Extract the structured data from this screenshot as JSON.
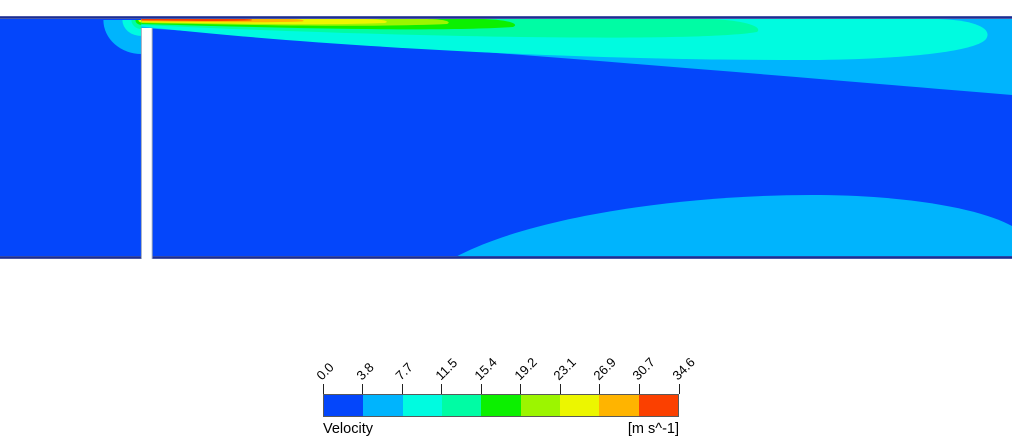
{
  "palette": {
    "blue": "#0446fb",
    "azure": "#00b4fd",
    "cyan": "#00fbe0",
    "spring_green": "#00fca4",
    "green": "#0cf000",
    "lime": "#9cf500",
    "yellow": "#ecf600",
    "orange": "#ffb400",
    "red_orange": "#fb4000",
    "wall_line": "#1c2d92",
    "baffle_fill": "#ffffff",
    "baffle_edge": "#97a1b4"
  },
  "legend": {
    "title": "Velocity",
    "units": "[m s^-1]",
    "tick_labels": [
      "0.0",
      "3.8",
      "7.7",
      "11.5",
      "15.4",
      "19.2",
      "23.1",
      "26.9",
      "30.7",
      "34.6"
    ],
    "colors": [
      "#0446fb",
      "#00b4fd",
      "#00fbe0",
      "#00fca4",
      "#0cf000",
      "#9cf500",
      "#ecf600",
      "#ffb400",
      "#fb4000"
    ]
  },
  "chart_data": {
    "type": "contour",
    "title": "Velocity",
    "units": "m s^-1",
    "levels": [
      0.0,
      3.8,
      7.7,
      11.5,
      15.4,
      19.2,
      23.1,
      26.9,
      30.7,
      34.6
    ],
    "band_ranges": [
      "0.0-3.8",
      "3.8-7.7",
      "7.7-11.5",
      "11.5-15.4",
      "15.4-19.2",
      "19.2-23.1",
      "23.1-26.9",
      "26.9-30.7",
      "30.7-34.6"
    ],
    "band_colors": [
      "#0446fb",
      "#00b4fd",
      "#00fbe0",
      "#00fca4",
      "#0cf000",
      "#9cf500",
      "#ecf600",
      "#ffb400",
      "#fb4000"
    ],
    "legend_position": "bottom-center",
    "scene": {
      "description": "2D CFD velocity-magnitude contour: flow accelerates through a narrow gap above a thin vertical baffle and forms a high-speed wall jet (up to ~34.6 m/s, red core) along the top wall; the jet spreads and decelerates downstream through orange/yellow/green/cyan bands. Background fluid in both chambers is in the lowest band (0.0-3.8 m/s, blue). A slow secondary flow region (3.8-7.7 m/s, light blue lens) lies along the bottom wall downstream, and a small suction fan of contours wraps the upstream side of the gap.",
      "max_velocity_band": "30.7-34.6 at the gap exit along the top wall",
      "background_band": "0.0-3.8"
    }
  }
}
